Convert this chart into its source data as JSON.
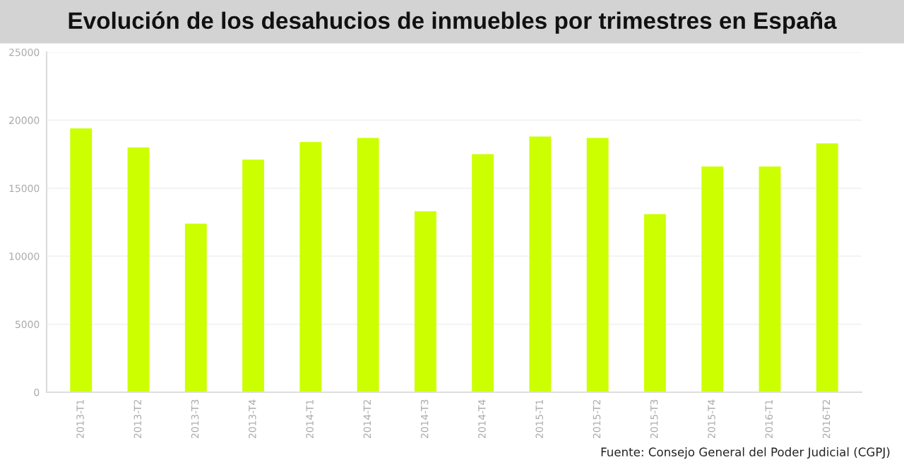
{
  "chart_data": {
    "type": "bar",
    "title": "Evolución de los desahucios de inmuebles por trimestres en España",
    "categories": [
      "2013-T1",
      "2013-T2",
      "2013-T3",
      "2013-T4",
      "2014-T1",
      "2014-T2",
      "2014-T3",
      "2014-T4",
      "2015-T1",
      "2015-T2",
      "2015-T3",
      "2015-T4",
      "2016-T1",
      "2016-T2"
    ],
    "values": [
      19400,
      18000,
      12400,
      17100,
      18400,
      18700,
      13300,
      17500,
      18800,
      18700,
      13100,
      16600,
      16600,
      18300
    ],
    "color": "#ccff00",
    "ylim": [
      0,
      25000
    ],
    "yticks": [
      0,
      5000,
      10000,
      15000,
      20000,
      25000
    ],
    "grid": "y",
    "annotations": [
      "Fuente: Consejo General del Poder Judicial (CGPJ)"
    ]
  }
}
